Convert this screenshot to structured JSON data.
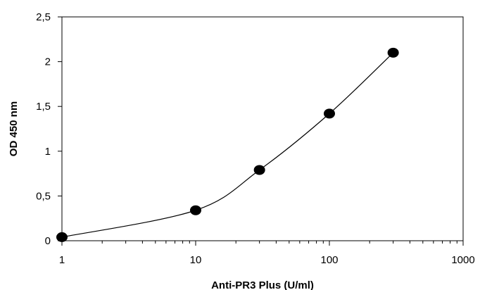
{
  "chart_data": {
    "type": "scatter",
    "xlabel": "Anti-PR3 Plus (U/ml)",
    "ylabel": "OD 450 nm",
    "x_scale": "log",
    "xlim": [
      1,
      1000
    ],
    "ylim": [
      0,
      2.5
    ],
    "x_ticks": [
      "1",
      "10",
      "100",
      "1000"
    ],
    "y_ticks": [
      "0",
      "0,5",
      "1",
      "1,5",
      "2",
      "2,5"
    ],
    "series": [
      {
        "points": [
          {
            "x": 1,
            "y": 0.04
          },
          {
            "x": 10,
            "y": 0.34
          },
          {
            "x": 30,
            "y": 0.79
          },
          {
            "x": 100,
            "y": 1.42
          },
          {
            "x": 300,
            "y": 2.1
          }
        ],
        "marker": "filled-circle",
        "line": "smooth",
        "color": "#000000"
      }
    ],
    "grid": false,
    "legend": false
  }
}
